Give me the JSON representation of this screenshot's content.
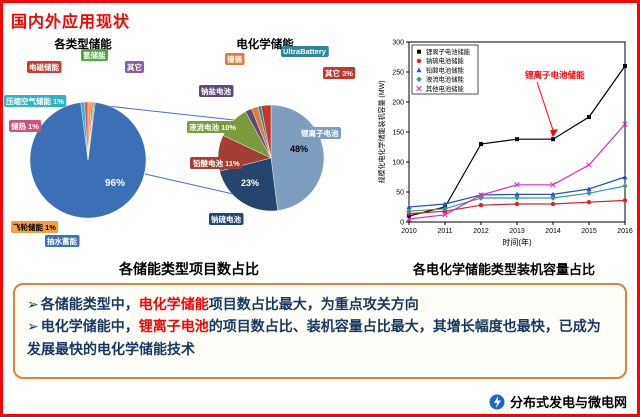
{
  "slide": {
    "title": "国内外应用现状",
    "footer_brand": "分布式发电与微电网"
  },
  "palette": {
    "frame_red": "#FF0000",
    "title_red": "#FF0000",
    "emphasis_red": "#FF0000",
    "body_navy": "#17375E",
    "box_border_orange": "#ED7D31",
    "connector_blue": "#4472C4"
  },
  "captions": {
    "pies": "各储能类型项目数占比",
    "line": "各电化学储能类型装机容量占比"
  },
  "bullets": [
    {
      "prefix": "➢",
      "parts": [
        {
          "text": "各储能类型中，",
          "em": false
        },
        {
          "text": "电化学储能",
          "em": true
        },
        {
          "text": "项目数占比最大，为重点攻关方向",
          "em": false
        }
      ]
    },
    {
      "prefix": "➢",
      "parts": [
        {
          "text": "电化学储能中，",
          "em": false
        },
        {
          "text": "锂离子电池",
          "em": true
        },
        {
          "text": "的项目数占比、装机容量占比最大，其增长幅度也最快，已成为发展最快的电化学储能技术",
          "em": false
        }
      ]
    }
  ],
  "chart_data": [
    {
      "type": "pie",
      "title": "各类型储能",
      "slices": [
        {
          "label": "抽水蓄能",
          "value": 96,
          "pct_label": "96%",
          "color": "#3B6FB6"
        },
        {
          "label": "压缩空气储能",
          "value": 1,
          "pct_label": "1%",
          "color": "#2FB3C6"
        },
        {
          "label": "储热",
          "value": 1,
          "pct_label": "1%",
          "color": "#D2527F"
        },
        {
          "label": "飞轮储能",
          "value": 1,
          "pct_label": "1%",
          "color": "#F2A13C"
        },
        {
          "label": "电磁储能",
          "value": 0.4,
          "pct_label": "",
          "color": "#D23A2E"
        },
        {
          "label": "氢储能",
          "value": 0.3,
          "pct_label": "",
          "color": "#4CA93C"
        },
        {
          "label": "其它",
          "value": 0.3,
          "pct_label": "",
          "color": "#8B5FA8"
        }
      ]
    },
    {
      "type": "pie",
      "title": "电化学储能",
      "slices": [
        {
          "label": "锂离子电池",
          "value": 48,
          "pct_label": "48%",
          "color": "#7D9EC0"
        },
        {
          "label": "钠硫电池",
          "value": 23,
          "pct_label": "23%",
          "color": "#24456E"
        },
        {
          "label": "铅酸电池",
          "value": 11,
          "pct_label": "11%",
          "color": "#A33E33"
        },
        {
          "label": "液流电池",
          "value": 10,
          "pct_label": "10%",
          "color": "#7A9A3C"
        },
        {
          "label": "钠盐电池",
          "value": 2,
          "pct_label": "",
          "color": "#5F497A"
        },
        {
          "label": "镍镉",
          "value": 2,
          "pct_label": "",
          "color": "#E07B39"
        },
        {
          "label": "UltraBattery",
          "value": 1,
          "pct_label": "",
          "color": "#31859B"
        },
        {
          "label": "其它",
          "value": 3,
          "pct_label": "3%",
          "color": "#C0392B"
        }
      ]
    },
    {
      "type": "line",
      "xlabel": "时间(年)",
      "ylabel": "规模化电化学储能装机容量 (MW)",
      "x": [
        2010,
        2011,
        2012,
        2013,
        2014,
        2015,
        2016
      ],
      "ylim": [
        0,
        300
      ],
      "yticks": [
        0,
        50,
        100,
        150,
        200,
        250,
        300
      ],
      "grid": false,
      "legend_position": "top-left",
      "series": [
        {
          "name": "锂离子电池储能",
          "color": "#000000",
          "marker": "square",
          "values": [
            10,
            25,
            130,
            138,
            138,
            175,
            260
          ]
        },
        {
          "name": "钠硫电池储能",
          "color": "#E02020",
          "marker": "circle",
          "values": [
            14,
            18,
            28,
            30,
            30,
            33,
            36
          ]
        },
        {
          "name": "铅酸电池储能",
          "color": "#2A4FC9",
          "marker": "triangle",
          "values": [
            25,
            30,
            45,
            46,
            46,
            55,
            75
          ]
        },
        {
          "name": "液流电池储能",
          "color": "#2AA198",
          "marker": "diamond",
          "values": [
            18,
            22,
            40,
            40,
            40,
            48,
            60
          ]
        },
        {
          "name": "其他电池储能",
          "color": "#D92BC3",
          "marker": "cross",
          "values": [
            5,
            12,
            45,
            62,
            62,
            95,
            163
          ]
        }
      ],
      "annotation": {
        "text": "锂离子电池储能",
        "color": "#FF0000",
        "target_series": "锂离子电池储能",
        "target_x": 2014
      }
    }
  ]
}
